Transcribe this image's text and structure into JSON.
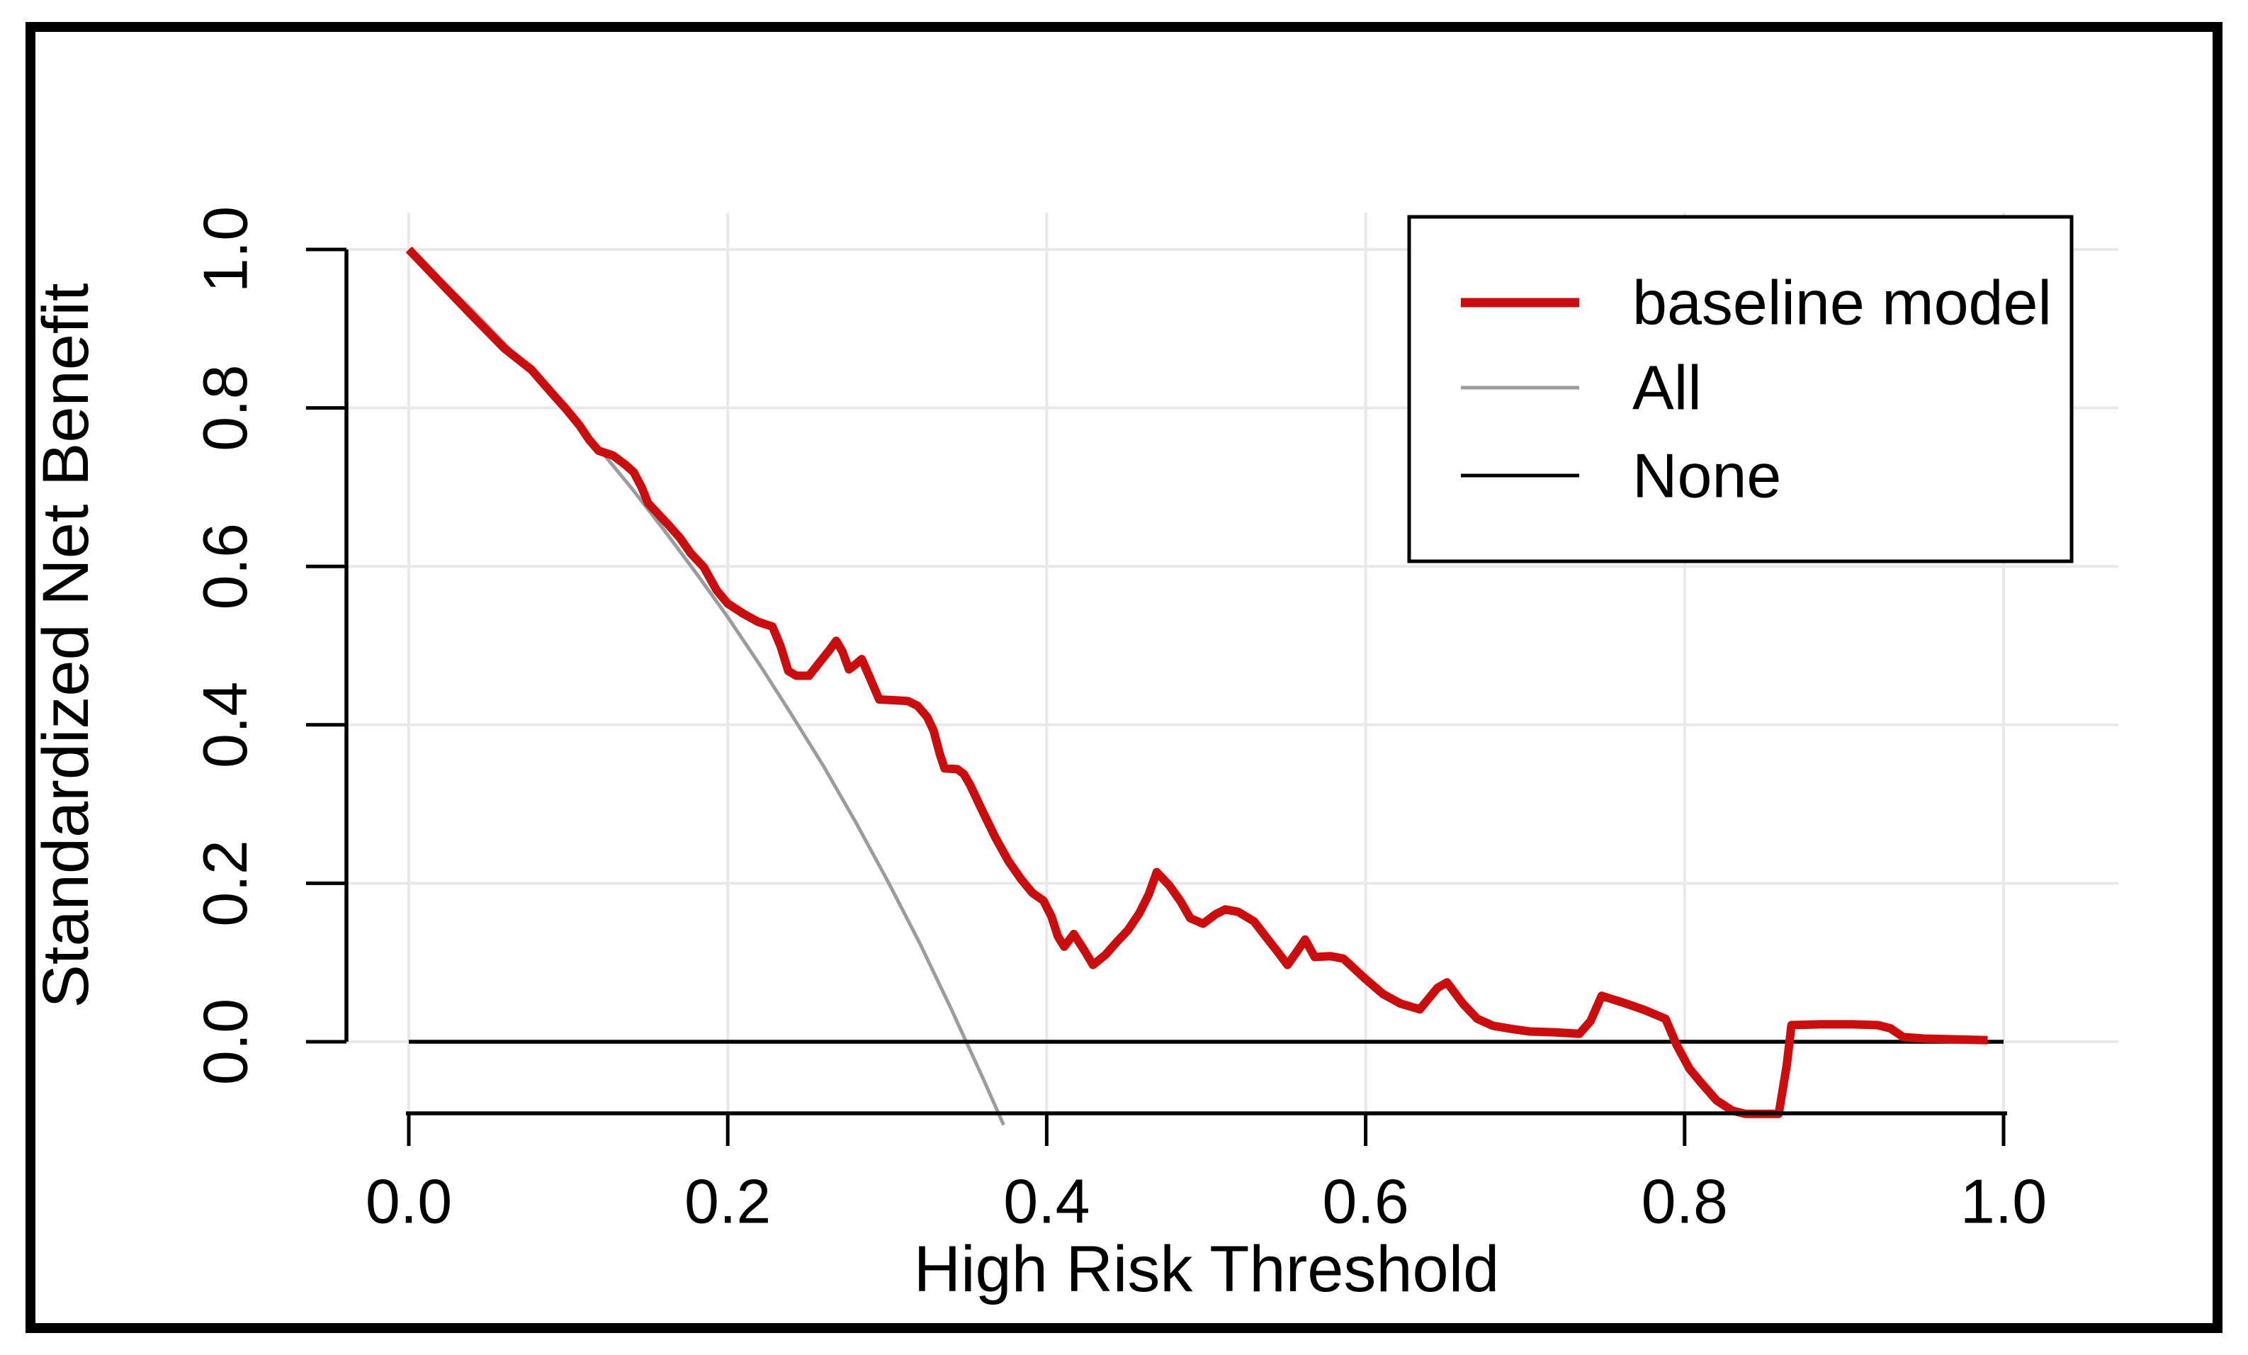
{
  "figure": {
    "background": "#ffffff",
    "border_color": "#000000",
    "grid_color": "#e9e9e9",
    "axis_color": "#000000"
  },
  "legend": {
    "entries": [
      {
        "label": "baseline model",
        "color": "#cc0d0d",
        "weight": "thick"
      },
      {
        "label": "All",
        "color": "#9c9c9c",
        "weight": "thin"
      },
      {
        "label": "None",
        "color": "#000000",
        "weight": "thin"
      }
    ]
  },
  "chart_data": {
    "type": "line",
    "title": "",
    "xlabel": "High Risk Threshold",
    "ylabel": "Standardized Net Benefit",
    "xlim": [
      0.0,
      1.0
    ],
    "ylim": [
      -0.09,
      1.0
    ],
    "x_ticks": [
      0.0,
      0.2,
      0.4,
      0.6,
      0.8,
      1.0
    ],
    "y_ticks": [
      0.0,
      0.2,
      0.4,
      0.6,
      0.8,
      1.0
    ],
    "x_tick_labels": [
      "0.0",
      "0.2",
      "0.4",
      "0.6",
      "0.8",
      "1.0"
    ],
    "y_tick_labels": [
      "0.0",
      "0.2",
      "0.4",
      "0.6",
      "0.8",
      "1.0"
    ],
    "grid": true,
    "legend_position": "top-right",
    "series": [
      {
        "name": "All",
        "color": "#9c9c9c",
        "width": 5,
        "points": [
          [
            0.0,
            1.0
          ],
          [
            0.02,
            0.962
          ],
          [
            0.04,
            0.923
          ],
          [
            0.06,
            0.881
          ],
          [
            0.08,
            0.839
          ],
          [
            0.1,
            0.794
          ],
          [
            0.12,
            0.747
          ],
          [
            0.14,
            0.698
          ],
          [
            0.16,
            0.646
          ],
          [
            0.18,
            0.592
          ],
          [
            0.2,
            0.536
          ],
          [
            0.22,
            0.476
          ],
          [
            0.24,
            0.413
          ],
          [
            0.26,
            0.348
          ],
          [
            0.28,
            0.278
          ],
          [
            0.3,
            0.204
          ],
          [
            0.32,
            0.126
          ],
          [
            0.34,
            0.042
          ],
          [
            0.36,
            -0.046
          ],
          [
            0.373,
            -0.105
          ]
        ]
      },
      {
        "name": "None",
        "color": "#000000",
        "width": 5.5,
        "points": [
          [
            0.0,
            0.0
          ],
          [
            1.0,
            0.0
          ]
        ]
      },
      {
        "name": "baseline model",
        "color": "#cc0d0d",
        "width": 12,
        "points": [
          [
            0.0,
            1.0
          ],
          [
            0.02,
            0.958
          ],
          [
            0.04,
            0.916
          ],
          [
            0.06,
            0.875
          ],
          [
            0.077,
            0.848
          ],
          [
            0.09,
            0.818
          ],
          [
            0.098,
            0.8
          ],
          [
            0.107,
            0.778
          ],
          [
            0.113,
            0.76
          ],
          [
            0.119,
            0.746
          ],
          [
            0.128,
            0.74
          ],
          [
            0.136,
            0.728
          ],
          [
            0.141,
            0.719
          ],
          [
            0.146,
            0.7
          ],
          [
            0.15,
            0.68
          ],
          [
            0.156,
            0.667
          ],
          [
            0.163,
            0.652
          ],
          [
            0.17,
            0.636
          ],
          [
            0.177,
            0.616
          ],
          [
            0.185,
            0.599
          ],
          [
            0.193,
            0.57
          ],
          [
            0.2,
            0.553
          ],
          [
            0.21,
            0.54
          ],
          [
            0.219,
            0.53
          ],
          [
            0.228,
            0.524
          ],
          [
            0.233,
            0.5
          ],
          [
            0.238,
            0.468
          ],
          [
            0.243,
            0.462
          ],
          [
            0.251,
            0.462
          ],
          [
            0.258,
            0.48
          ],
          [
            0.264,
            0.495
          ],
          [
            0.268,
            0.506
          ],
          [
            0.272,
            0.492
          ],
          [
            0.276,
            0.47
          ],
          [
            0.28,
            0.476
          ],
          [
            0.284,
            0.483
          ],
          [
            0.289,
            0.46
          ],
          [
            0.295,
            0.432
          ],
          [
            0.305,
            0.431
          ],
          [
            0.313,
            0.43
          ],
          [
            0.319,
            0.424
          ],
          [
            0.325,
            0.41
          ],
          [
            0.329,
            0.393
          ],
          [
            0.333,
            0.363
          ],
          [
            0.336,
            0.345
          ],
          [
            0.344,
            0.344
          ],
          [
            0.348,
            0.338
          ],
          [
            0.352,
            0.324
          ],
          [
            0.36,
            0.29
          ],
          [
            0.368,
            0.257
          ],
          [
            0.376,
            0.228
          ],
          [
            0.384,
            0.205
          ],
          [
            0.391,
            0.188
          ],
          [
            0.398,
            0.178
          ],
          [
            0.403,
            0.158
          ],
          [
            0.407,
            0.133
          ],
          [
            0.411,
            0.12
          ],
          [
            0.417,
            0.136
          ],
          [
            0.424,
            0.114
          ],
          [
            0.429,
            0.097
          ],
          [
            0.437,
            0.11
          ],
          [
            0.444,
            0.126
          ],
          [
            0.451,
            0.141
          ],
          [
            0.458,
            0.162
          ],
          [
            0.464,
            0.186
          ],
          [
            0.469,
            0.214
          ],
          [
            0.477,
            0.197
          ],
          [
            0.484,
            0.177
          ],
          [
            0.49,
            0.156
          ],
          [
            0.498,
            0.149
          ],
          [
            0.506,
            0.161
          ],
          [
            0.512,
            0.167
          ],
          [
            0.52,
            0.164
          ],
          [
            0.53,
            0.152
          ],
          [
            0.538,
            0.131
          ],
          [
            0.545,
            0.113
          ],
          [
            0.551,
            0.097
          ],
          [
            0.557,
            0.114
          ],
          [
            0.562,
            0.129
          ],
          [
            0.568,
            0.107
          ],
          [
            0.578,
            0.108
          ],
          [
            0.586,
            0.105
          ],
          [
            0.6,
            0.079
          ],
          [
            0.611,
            0.06
          ],
          [
            0.622,
            0.048
          ],
          [
            0.634,
            0.041
          ],
          [
            0.645,
            0.068
          ],
          [
            0.651,
            0.075
          ],
          [
            0.661,
            0.048
          ],
          [
            0.67,
            0.029
          ],
          [
            0.68,
            0.02
          ],
          [
            0.692,
            0.016
          ],
          [
            0.703,
            0.013
          ],
          [
            0.718,
            0.012
          ],
          [
            0.734,
            0.01
          ],
          [
            0.741,
            0.026
          ],
          [
            0.748,
            0.058
          ],
          [
            0.762,
            0.049
          ],
          [
            0.775,
            0.04
          ],
          [
            0.788,
            0.029
          ],
          [
            0.795,
            -0.004
          ],
          [
            0.803,
            -0.034
          ],
          [
            0.81,
            -0.051
          ],
          [
            0.82,
            -0.074
          ],
          [
            0.83,
            -0.087
          ],
          [
            0.838,
            -0.091
          ],
          [
            0.859,
            -0.091
          ],
          [
            0.864,
            -0.03
          ],
          [
            0.867,
            0.021
          ],
          [
            0.885,
            0.022
          ],
          [
            0.905,
            0.022
          ],
          [
            0.921,
            0.021
          ],
          [
            0.929,
            0.017
          ],
          [
            0.937,
            0.006
          ],
          [
            0.95,
            0.004
          ],
          [
            0.97,
            0.003
          ],
          [
            0.99,
            0.002
          ]
        ]
      }
    ]
  }
}
